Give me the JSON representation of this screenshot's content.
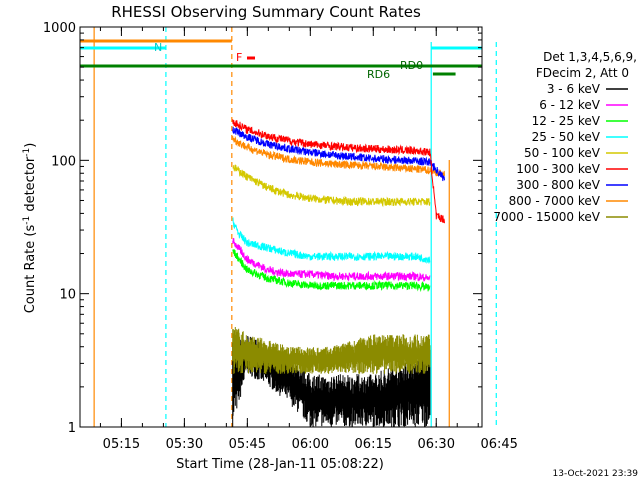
{
  "chart_data": {
    "type": "line",
    "title": "RHESSI Observing Summary Count Rates",
    "xlabel": "Start Time (28-Jan-11 05:08:22)",
    "ylabel_main": "Count Rate (s",
    "ylabel_sup1": "-1",
    "ylabel_mid": " detector",
    "ylabel_sup2": "-1",
    "ylabel_end": ")",
    "yscale": "log",
    "ylim": [
      1,
      1000
    ],
    "xlim_minutes": [
      5.1333,
      100.9
    ],
    "x_ticks": [
      {
        "label": "05:15",
        "m": 15
      },
      {
        "label": "05:30",
        "m": 30
      },
      {
        "label": "05:45",
        "m": 45
      },
      {
        "label": "06:00",
        "m": 60
      },
      {
        "label": "06:15",
        "m": 75
      },
      {
        "label": "06:30",
        "m": 90
      },
      {
        "label": "06:45",
        "m": 105
      }
    ],
    "y_ticks": [
      {
        "label": "1",
        "v": 1
      },
      {
        "label": "10",
        "v": 10
      },
      {
        "label": "100",
        "v": 100
      },
      {
        "label": "1000",
        "v": 1000
      }
    ],
    "legend": {
      "header": [
        "Det 1,3,4,5,6,9,",
        "FDecim 2, Att 0"
      ],
      "entries": [
        {
          "label": "3 - 6 keV",
          "color": "#000000"
        },
        {
          "label": "6 - 12 keV",
          "color": "#ff00ff"
        },
        {
          "label": "12 - 25 keV",
          "color": "#00ff00"
        },
        {
          "label": "25 - 50 keV",
          "color": "#00ffff"
        },
        {
          "label": "50 - 100 keV",
          "color": "#d4c800"
        },
        {
          "label": "100 - 300 keV",
          "color": "#ff0000"
        },
        {
          "label": "300 - 800 keV",
          "color": "#0000ff"
        },
        {
          "label": "800 - 7000 keV",
          "color": "#ff8800"
        },
        {
          "label": "7000 - 15000 keV",
          "color": "#8b8b00"
        }
      ]
    },
    "series": [
      {
        "name": "6 - 12 keV",
        "color": "#ff00ff",
        "x": [
          41.5,
          45,
          50,
          55,
          60,
          65,
          70,
          75,
          80,
          85,
          88.5
        ],
        "y": [
          25,
          18,
          15,
          14,
          14,
          13.5,
          13.5,
          13.5,
          13.5,
          13.5,
          13
        ]
      },
      {
        "name": "12 - 25 keV",
        "color": "#00ff00",
        "x": [
          41.5,
          45,
          50,
          55,
          60,
          65,
          70,
          75,
          80,
          85,
          88.5
        ],
        "y": [
          21,
          15,
          13,
          12,
          11.5,
          11.5,
          11.5,
          11.5,
          11.5,
          11.5,
          11
        ]
      },
      {
        "name": "25 - 50 keV",
        "color": "#00ffff",
        "x": [
          41.5,
          43,
          45,
          50,
          55,
          60,
          65,
          70,
          75,
          80,
          85,
          88.5
        ],
        "y": [
          35,
          28,
          24,
          22,
          20,
          19,
          19,
          19,
          19,
          19,
          19,
          18
        ]
      },
      {
        "name": "50 - 100 keV",
        "color": "#d4c800",
        "x": [
          41.5,
          45,
          50,
          55,
          60,
          65,
          70,
          75,
          80,
          85,
          88.5
        ],
        "y": [
          90,
          75,
          62,
          55,
          52,
          50,
          49,
          49,
          49,
          49,
          49
        ]
      },
      {
        "name": "800 - 7000 keV",
        "color": "#ff8800",
        "x": [
          41.5,
          45,
          50,
          55,
          60,
          65,
          70,
          75,
          80,
          85,
          88.5,
          92
        ],
        "y": [
          145,
          125,
          110,
          102,
          97,
          94,
          92,
          90,
          88,
          86,
          84,
          78
        ]
      },
      {
        "name": "300 - 800 keV",
        "color": "#0000ff",
        "x": [
          41.5,
          45,
          50,
          55,
          60,
          65,
          70,
          75,
          80,
          85,
          88.5,
          92
        ],
        "y": [
          170,
          150,
          132,
          122,
          115,
          110,
          106,
          103,
          101,
          99,
          97,
          72
        ]
      },
      {
        "name": "100 - 300 keV",
        "color": "#ff0000",
        "x": [
          41.5,
          45,
          50,
          55,
          60,
          65,
          70,
          75,
          80,
          85,
          88.5,
          90,
          92
        ],
        "y": [
          195,
          170,
          152,
          140,
          132,
          128,
          124,
          122,
          120,
          118,
          115,
          38,
          36
        ]
      }
    ],
    "noisy_series": [
      {
        "name": "3 - 6 keV",
        "color": "#000000",
        "x": [
          41.5,
          45,
          50,
          55,
          60,
          65,
          70,
          75,
          80,
          85,
          88.5
        ],
        "lo": [
          1,
          2.5,
          2,
          1.5,
          1,
          1,
          1,
          1,
          1,
          1,
          1
        ],
        "hi": [
          4.5,
          5,
          4,
          3.5,
          2.5,
          2.5,
          2.5,
          2.5,
          3,
          3.5,
          4
        ]
      },
      {
        "name": "7000 - 15000 keV",
        "color": "#8b8b00",
        "x": [
          41.5,
          45,
          50,
          55,
          60,
          65,
          70,
          75,
          80,
          85,
          88.5
        ],
        "lo": [
          2.5,
          2.5,
          2.5,
          2.5,
          2.5,
          2.5,
          2.5,
          2.5,
          2.5,
          2.5,
          2.5
        ],
        "hi": [
          6,
          5,
          4.5,
          4,
          4,
          4,
          4.5,
          5,
          5,
          5,
          5
        ]
      }
    ],
    "flags": [
      {
        "label": "N",
        "color": "#00ffff"
      },
      {
        "label": "F",
        "color": "#ff0000"
      },
      {
        "label": "RD6",
        "color": "#008000"
      },
      {
        "label": "RD0",
        "color": "#008000"
      }
    ],
    "timestamp": "13-Oct-2021 23:39"
  }
}
